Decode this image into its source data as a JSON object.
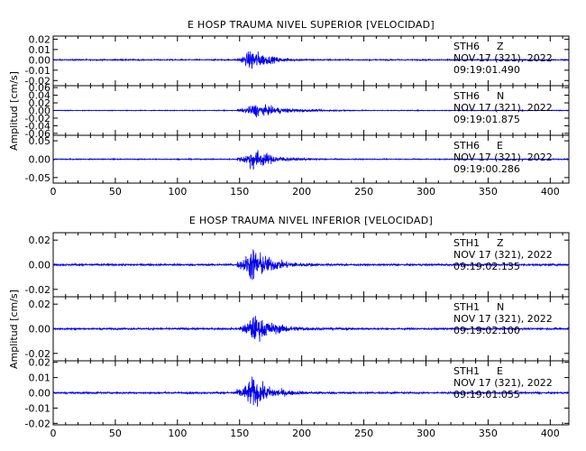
{
  "chart_data": [
    {
      "type": "line",
      "title": "E HOSP TRAUMA NIVEL SUPERIOR [VELOCIDAD]",
      "ylabel": "Amplitud [cm/s]",
      "xlim": [
        0,
        415
      ],
      "x_ticks": [
        "0",
        "50",
        "100",
        "150",
        "200",
        "250",
        "300",
        "350",
        "400"
      ],
      "series_color": "#0000ee",
      "traces": [
        {
          "station": "STH6",
          "component": "Z",
          "date": "NOV 17 (321), 2022",
          "time": "09:19:01.490",
          "ylim": [
            -0.025,
            0.023
          ],
          "y_ticks": [
            {
              "v": 0.02,
              "label": "0.02"
            },
            {
              "v": 0.01,
              "label": "0.01"
            },
            {
              "v": 0.0,
              "label": "0.00"
            },
            {
              "v": -0.01,
              "label": "-0.01"
            },
            {
              "v": -0.02,
              "label": "-0.02"
            }
          ],
          "noise": 0.0009,
          "peak": 0.018,
          "onset": 148,
          "peak_time": 160,
          "decay": 12,
          "end": 240
        },
        {
          "station": "STH6",
          "component": "N",
          "date": "NOV 17 (321), 2022",
          "time": "09:19:01.875",
          "ylim": [
            -0.065,
            0.065
          ],
          "y_ticks": [
            {
              "v": 0.06,
              "label": "0.06"
            },
            {
              "v": 0.04,
              "label": "0.04"
            },
            {
              "v": 0.02,
              "label": "0.02"
            },
            {
              "v": 0.0,
              "label": "0.00"
            },
            {
              "v": -0.02,
              "label": "-0.02"
            },
            {
              "v": -0.04,
              "label": "-0.04"
            },
            {
              "v": -0.06,
              "label": "-0.06"
            }
          ],
          "noise": 0.0015,
          "peak": 0.028,
          "onset": 148,
          "peak_time": 162,
          "decay": 22,
          "end": 260
        },
        {
          "station": "STH6",
          "component": "E",
          "date": "NOV 17 (321), 2022",
          "time": "09:19:00.286",
          "ylim": [
            -0.065,
            0.065
          ],
          "y_ticks": [
            {
              "v": 0.05,
              "label": "0.05"
            },
            {
              "v": 0.0,
              "label": "0.00"
            },
            {
              "v": -0.05,
              "label": "-0.05"
            }
          ],
          "noise": 0.002,
          "peak": 0.05,
          "onset": 148,
          "peak_time": 161,
          "decay": 14,
          "end": 250
        }
      ]
    },
    {
      "type": "line",
      "title": "E HOSP TRAUMA NIVEL INFERIOR [VELOCIDAD]",
      "ylabel": "Amplitud [cm/s]",
      "xlim": [
        0,
        415
      ],
      "x_ticks": [
        "0",
        "50",
        "100",
        "150",
        "200",
        "250",
        "300",
        "350",
        "400"
      ],
      "series_color": "#0000ee",
      "traces": [
        {
          "station": "STH1",
          "component": "Z",
          "date": "NOV 17 (321), 2022",
          "time": "09:19:02.135",
          "ylim": [
            -0.026,
            0.026
          ],
          "y_ticks": [
            {
              "v": 0.02,
              "label": "0.02"
            },
            {
              "v": 0.0,
              "label": "0.00"
            },
            {
              "v": -0.02,
              "label": "-0.02"
            }
          ],
          "noise": 0.0012,
          "peak": 0.024,
          "onset": 148,
          "peak_time": 160,
          "decay": 14,
          "end": 250
        },
        {
          "station": "STH1",
          "component": "N",
          "date": "NOV 17 (321), 2022",
          "time": "09:19:02.100",
          "ylim": [
            -0.026,
            0.026
          ],
          "y_ticks": [
            {
              "v": 0.02,
              "label": "0.02"
            },
            {
              "v": 0.0,
              "label": "0.00"
            },
            {
              "v": -0.02,
              "label": "-0.02"
            }
          ],
          "noise": 0.0011,
          "peak": 0.018,
          "onset": 150,
          "peak_time": 161,
          "decay": 16,
          "end": 255
        },
        {
          "station": "STH1",
          "component": "E",
          "date": "NOV 17 (321), 2022",
          "time": "09:19:01.055",
          "ylim": [
            -0.021,
            0.021
          ],
          "y_ticks": [
            {
              "v": 0.02,
              "label": "0.02"
            },
            {
              "v": 0.01,
              "label": "0.01"
            },
            {
              "v": 0.0,
              "label": "0.00"
            },
            {
              "v": -0.01,
              "label": "-0.01"
            },
            {
              "v": -0.02,
              "label": "-0.02"
            }
          ],
          "noise": 0.0009,
          "peak": 0.016,
          "onset": 146,
          "peak_time": 160,
          "decay": 14,
          "end": 250
        }
      ]
    }
  ]
}
